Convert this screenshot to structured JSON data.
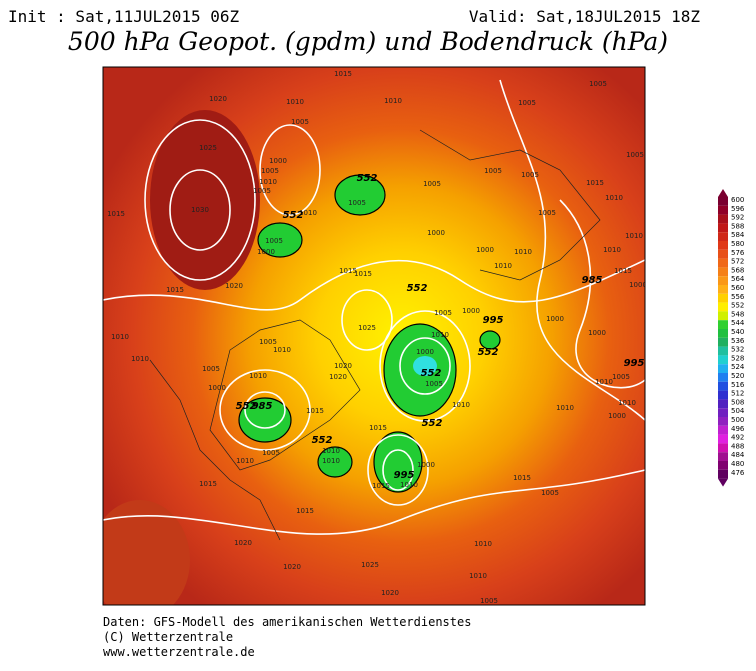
{
  "header": {
    "init": "Init : Sat,11JUL2015 06Z",
    "valid": "Valid: Sat,18JUL2015 18Z",
    "title": "500 hPa Geopot. (gpdm) und Bodendruck (hPa)"
  },
  "colorbar_levels": [
    600,
    596,
    592,
    588,
    584,
    580,
    576,
    572,
    568,
    564,
    560,
    556,
    552,
    548,
    544,
    540,
    536,
    532,
    528,
    524,
    520,
    516,
    512,
    508,
    504,
    500,
    496,
    492,
    488,
    484,
    480,
    476
  ],
  "contour_labels": [
    "1015",
    "1020",
    "1010",
    "1010",
    "1005",
    "1025",
    "1000",
    "1005",
    "1010",
    "1005",
    "1030",
    "1015",
    "1010",
    "1005",
    "1000",
    "1005",
    "1005",
    "1000",
    "1015",
    "1015",
    "1020",
    "1015",
    "1010",
    "1010",
    "1005",
    "1005",
    "1000",
    "1010",
    "1025",
    "1020",
    "1020",
    "1010",
    "985",
    "1015",
    "1000",
    "1005",
    "1010",
    "1010",
    "1005",
    "1000",
    "995",
    "1000",
    "995",
    "1010",
    "1010",
    "1010",
    "1015",
    "1015",
    "1015",
    "1015",
    "1005",
    "1010",
    "1020",
    "1020",
    "1025",
    "1020",
    "1010",
    "1010",
    "1005",
    "1015",
    "1005",
    "1010",
    "1010",
    "1000",
    "995",
    "1005",
    "1010",
    "1000",
    "1000",
    "985",
    "1000",
    "1015",
    "1010",
    "1010",
    "1005",
    "1005",
    "1005",
    "1005",
    "1015",
    "1010",
    "1005",
    "1005",
    "1010",
    "1010",
    "1000",
    "552",
    "552",
    "552",
    "552",
    "552",
    "552",
    "552",
    "552"
  ],
  "footer": [
    "Daten: GFS-Modell des amerikanischen Wetterdienstes",
    "(C) Wetterzentrale",
    "www.wetterzentrale.de"
  ]
}
